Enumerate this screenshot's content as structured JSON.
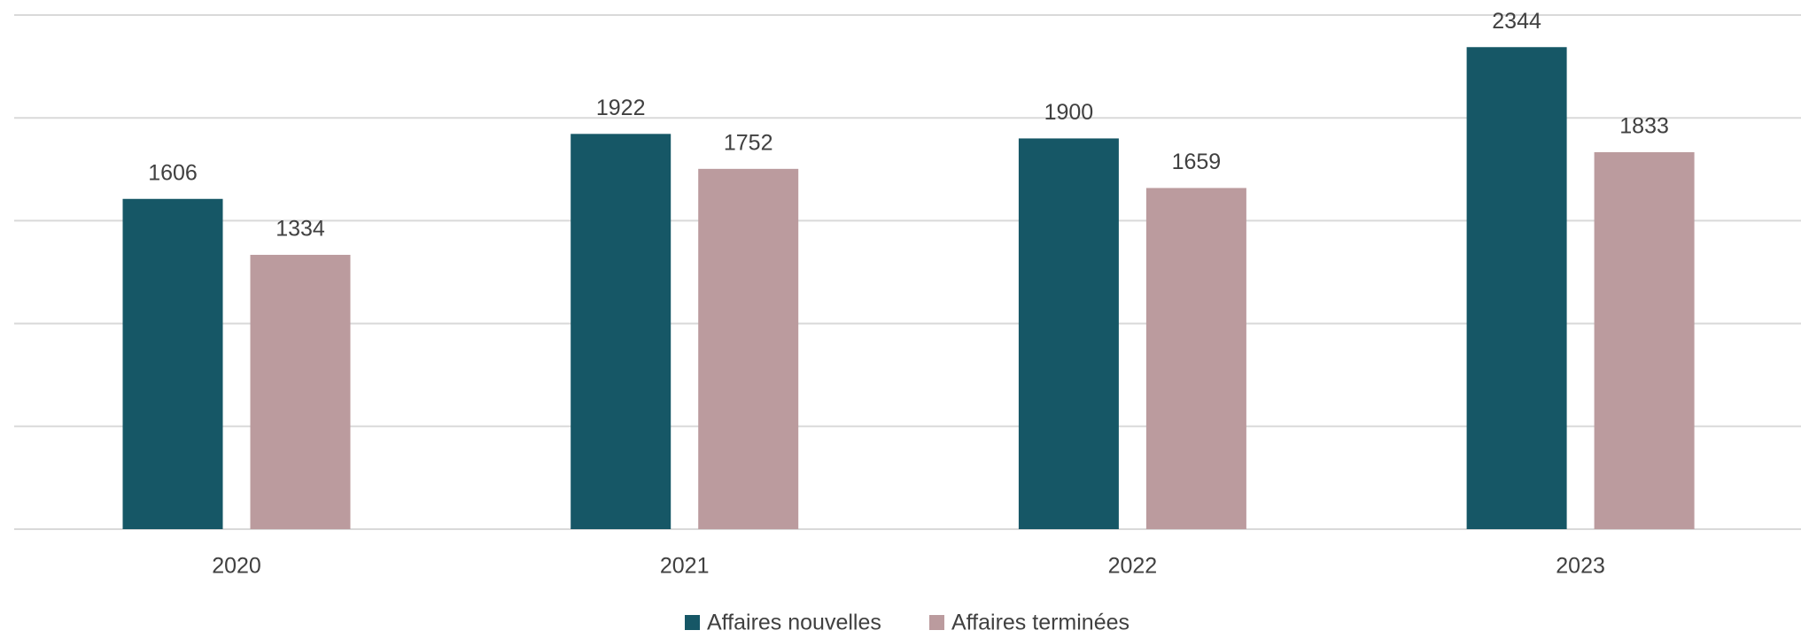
{
  "chart_data": {
    "type": "bar",
    "categories": [
      "2020",
      "2021",
      "2022",
      "2023"
    ],
    "series": [
      {
        "name": "Affaires nouvelles",
        "color": "#165766",
        "values": [
          1606,
          1922,
          1900,
          2344
        ]
      },
      {
        "name": "Affaires terminées",
        "color": "#bb9b9e",
        "values": [
          1334,
          1752,
          1659,
          1833
        ]
      }
    ],
    "ylim": [
      0,
      2500
    ],
    "yticks": [
      0,
      500,
      1000,
      1500,
      2000,
      2500
    ],
    "grid": true,
    "legend": "bottom"
  }
}
